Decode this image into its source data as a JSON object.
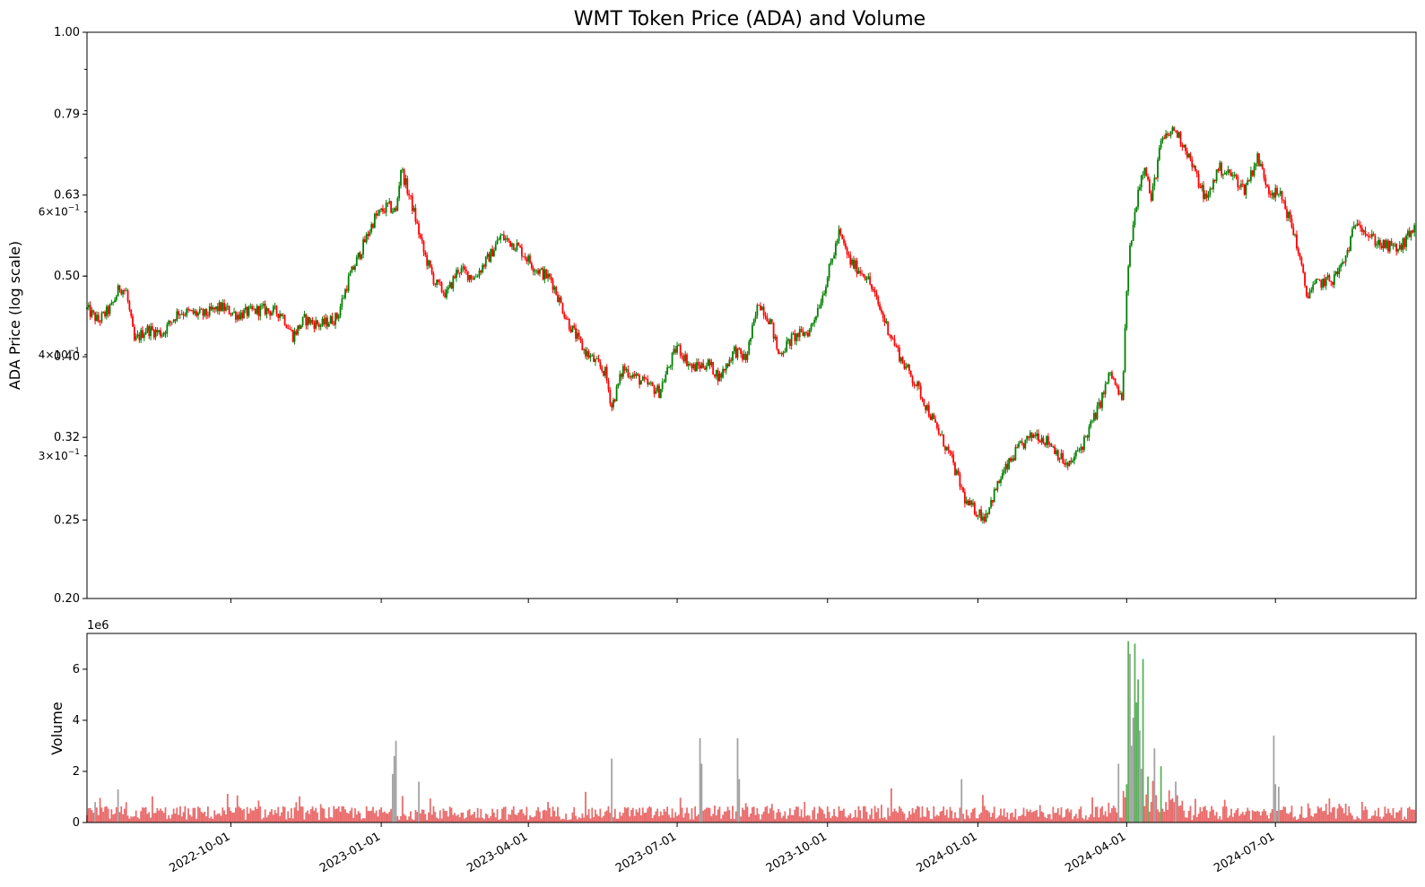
{
  "chart_data": [
    {
      "type": "candlestick",
      "title": "WMT Token Price (ADA) and Volume",
      "ylabel": "ADA Price (log scale)",
      "y_scale": "log",
      "ylim": [
        0.2,
        1.0
      ],
      "xlim": [
        "2022-07-05",
        "2024-09-25"
      ],
      "y_ticks": [
        {
          "value": 0.2,
          "label": "0.20"
        },
        {
          "value": 0.25,
          "label": "0.25"
        },
        {
          "value": 0.3162,
          "label": "0.32"
        },
        {
          "value": 0.3976,
          "label": "0.40"
        },
        {
          "value": 0.5,
          "label": "0.50"
        },
        {
          "value": 0.6295,
          "label": "0.63"
        },
        {
          "value": 0.7924,
          "label": "0.79"
        },
        {
          "value": 1.0,
          "label": "1.00"
        }
      ],
      "y_minor_ticks": [
        {
          "value": 0.3,
          "label_base": "3×10",
          "label_exp": "−1"
        },
        {
          "value": 0.4,
          "label_base": "4×10",
          "label_exp": "−1"
        },
        {
          "value": 0.6,
          "label_base": "6×10",
          "label_exp": "−1"
        }
      ],
      "up_color": "#008000",
      "down_color": "#ff0000",
      "price_path": [
        [
          "2022-07-05",
          0.455
        ],
        [
          "2022-07-12",
          0.44
        ],
        [
          "2022-07-20",
          0.458
        ],
        [
          "2022-07-25",
          0.485
        ],
        [
          "2022-07-29",
          0.478
        ],
        [
          "2022-08-03",
          0.415
        ],
        [
          "2022-08-10",
          0.43
        ],
        [
          "2022-08-20",
          0.425
        ],
        [
          "2022-08-30",
          0.452
        ],
        [
          "2022-09-15",
          0.448
        ],
        [
          "2022-09-25",
          0.458
        ],
        [
          "2022-10-05",
          0.448
        ],
        [
          "2022-10-20",
          0.455
        ],
        [
          "2022-11-01",
          0.45
        ],
        [
          "2022-11-08",
          0.422
        ],
        [
          "2022-11-15",
          0.442
        ],
        [
          "2022-11-25",
          0.435
        ],
        [
          "2022-12-05",
          0.445
        ],
        [
          "2022-12-12",
          0.495
        ],
        [
          "2022-12-20",
          0.54
        ],
        [
          "2022-12-28",
          0.59
        ],
        [
          "2023-01-05",
          0.61
        ],
        [
          "2023-01-10",
          0.6
        ],
        [
          "2023-01-13",
          0.68
        ],
        [
          "2023-01-20",
          0.61
        ],
        [
          "2023-01-27",
          0.535
        ],
        [
          "2023-02-03",
          0.49
        ],
        [
          "2023-02-10",
          0.475
        ],
        [
          "2023-02-17",
          0.51
        ],
        [
          "2023-02-27",
          0.498
        ],
        [
          "2023-03-08",
          0.528
        ],
        [
          "2023-03-15",
          0.56
        ],
        [
          "2023-03-25",
          0.545
        ],
        [
          "2023-04-05",
          0.512
        ],
        [
          "2023-04-15",
          0.495
        ],
        [
          "2023-04-25",
          0.44
        ],
        [
          "2023-05-05",
          0.405
        ],
        [
          "2023-05-18",
          0.38
        ],
        [
          "2023-05-22",
          0.345
        ],
        [
          "2023-05-29",
          0.385
        ],
        [
          "2023-06-10",
          0.37
        ],
        [
          "2023-06-20",
          0.36
        ],
        [
          "2023-07-01",
          0.41
        ],
        [
          "2023-07-10",
          0.385
        ],
        [
          "2023-07-20",
          0.39
        ],
        [
          "2023-07-27",
          0.375
        ],
        [
          "2023-08-05",
          0.405
        ],
        [
          "2023-08-12",
          0.395
        ],
        [
          "2023-08-20",
          0.465
        ],
        [
          "2023-08-27",
          0.44
        ],
        [
          "2023-09-01",
          0.4
        ],
        [
          "2023-09-10",
          0.42
        ],
        [
          "2023-09-20",
          0.428
        ],
        [
          "2023-09-28",
          0.475
        ],
        [
          "2023-10-05",
          0.535
        ],
        [
          "2023-10-08",
          0.565
        ],
        [
          "2023-10-15",
          0.52
        ],
        [
          "2023-10-25",
          0.5
        ],
        [
          "2023-11-05",
          0.44
        ],
        [
          "2023-11-15",
          0.395
        ],
        [
          "2023-11-25",
          0.365
        ],
        [
          "2023-12-05",
          0.33
        ],
        [
          "2023-12-15",
          0.3
        ],
        [
          "2023-12-25",
          0.262
        ],
        [
          "2024-01-05",
          0.252
        ],
        [
          "2024-01-15",
          0.282
        ],
        [
          "2024-01-25",
          0.305
        ],
        [
          "2024-02-05",
          0.32
        ],
        [
          "2024-02-15",
          0.31
        ],
        [
          "2024-02-25",
          0.29
        ],
        [
          "2024-03-05",
          0.31
        ],
        [
          "2024-03-15",
          0.345
        ],
        [
          "2024-03-22",
          0.38
        ],
        [
          "2024-03-29",
          0.35
        ],
        [
          "2024-04-02",
          0.52
        ],
        [
          "2024-04-08",
          0.64
        ],
        [
          "2024-04-12",
          0.69
        ],
        [
          "2024-04-16",
          0.62
        ],
        [
          "2024-04-22",
          0.73
        ],
        [
          "2024-04-30",
          0.76
        ],
        [
          "2024-05-07",
          0.72
        ],
        [
          "2024-05-14",
          0.66
        ],
        [
          "2024-05-20",
          0.62
        ],
        [
          "2024-05-27",
          0.68
        ],
        [
          "2024-06-05",
          0.665
        ],
        [
          "2024-06-12",
          0.64
        ],
        [
          "2024-06-20",
          0.7
        ],
        [
          "2024-06-27",
          0.64
        ],
        [
          "2024-07-05",
          0.625
        ],
        [
          "2024-07-13",
          0.56
        ],
        [
          "2024-07-20",
          0.475
        ],
        [
          "2024-07-27",
          0.49
        ],
        [
          "2024-08-05",
          0.495
        ],
        [
          "2024-08-12",
          0.52
        ],
        [
          "2024-08-20",
          0.59
        ],
        [
          "2024-08-27",
          0.56
        ],
        [
          "2024-09-05",
          0.545
        ],
        [
          "2024-09-15",
          0.54
        ],
        [
          "2024-09-24",
          0.575
        ]
      ]
    },
    {
      "type": "bar",
      "ylabel": "Volume",
      "y_multiplier_label": "1e6",
      "ylim": [
        0,
        7.4
      ],
      "y_ticks": [
        0,
        2,
        4,
        6
      ],
      "xlim": [
        "2022-07-05",
        "2024-09-25"
      ],
      "x_ticks": [
        "2022-10-01",
        "2023-01-01",
        "2023-04-01",
        "2023-07-01",
        "2023-10-01",
        "2024-01-01",
        "2024-04-01",
        "2024-07-01"
      ],
      "bar_color": "#e85c5c",
      "spike_colors": {
        "green": "#4aa84a",
        "grey": "#999999"
      },
      "volume_spikes_millions": [
        [
          "2022-07-10",
          0.8
        ],
        [
          "2022-07-24",
          1.3
        ],
        [
          "2023-01-08",
          1.9
        ],
        [
          "2023-01-09",
          2.6
        ],
        [
          "2023-01-10",
          3.2
        ],
        [
          "2023-01-24",
          1.6
        ],
        [
          "2023-05-22",
          2.5
        ],
        [
          "2023-07-15",
          3.3
        ],
        [
          "2023-07-16",
          2.3
        ],
        [
          "2023-08-07",
          3.3
        ],
        [
          "2023-08-08",
          1.7
        ],
        [
          "2023-12-22",
          1.7
        ],
        [
          "2024-03-27",
          2.3
        ],
        [
          "2024-04-01",
          1.5
        ],
        [
          "2024-04-02",
          7.1
        ],
        [
          "2024-04-03",
          6.6
        ],
        [
          "2024-04-04",
          3.0
        ],
        [
          "2024-04-05",
          4.1
        ],
        [
          "2024-04-06",
          7.0
        ],
        [
          "2024-04-07",
          4.7
        ],
        [
          "2024-04-08",
          5.6
        ],
        [
          "2024-04-09",
          3.6
        ],
        [
          "2024-04-10",
          2.1
        ],
        [
          "2024-04-11",
          6.4
        ],
        [
          "2024-04-14",
          1.8
        ],
        [
          "2024-04-18",
          2.9
        ],
        [
          "2024-04-22",
          2.2
        ],
        [
          "2024-05-01",
          1.6
        ],
        [
          "2024-06-30",
          3.4
        ],
        [
          "2024-07-01",
          1.5
        ],
        [
          "2024-07-03",
          1.4
        ]
      ]
    }
  ]
}
